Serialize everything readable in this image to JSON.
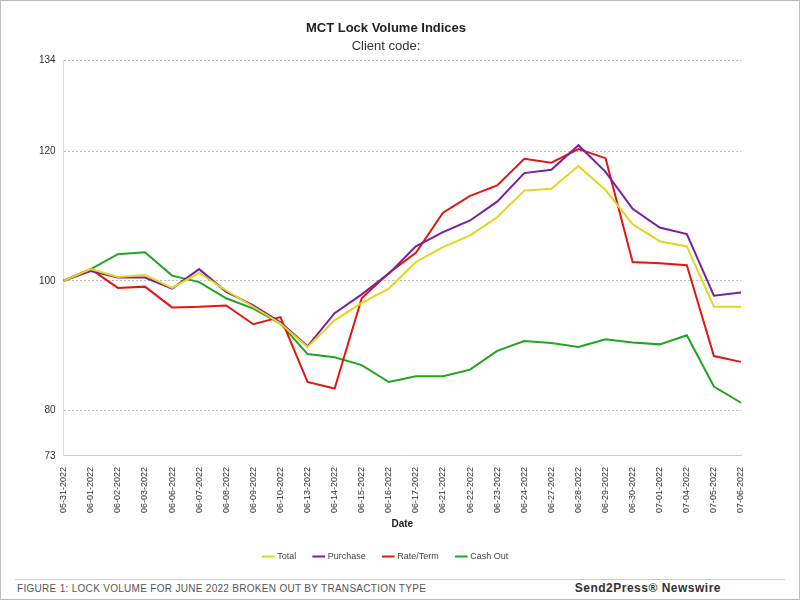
{
  "chart_data": {
    "type": "line",
    "title": "MCT Lock Volume Indices",
    "subtitle": "Client code:",
    "x_label": "Date",
    "categories": [
      "05-31-2022",
      "06-01-2022",
      "06-02-2022",
      "06-03-2022",
      "06-06-2022",
      "06-07-2022",
      "06-08-2022",
      "06-09-2022",
      "06-10-2022",
      "06-13-2022",
      "06-14-2022",
      "06-15-2022",
      "06-16-2022",
      "06-17-2022",
      "06-21-2022",
      "06-22-2022",
      "06-23-2022",
      "06-24-2022",
      "06-27-2022",
      "06-28-2022",
      "06-29-2022",
      "06-30-2022",
      "07-01-2022",
      "07-04-2022",
      "07-05-2022",
      "07-06-2022"
    ],
    "series": [
      {
        "name": "Total",
        "color": "#e3d51c",
        "values": [
          100,
          101.8,
          100.6,
          100.9,
          98.9,
          101.2,
          98.5,
          96.0,
          93.4,
          89.8,
          93.9,
          96.6,
          98.8,
          102.9,
          105.2,
          107.0,
          109.8,
          113.9,
          114.2,
          117.7,
          114.0,
          108.7,
          106.1,
          105.3,
          96.0,
          96.0
        ]
      },
      {
        "name": "Purchase",
        "color": "#7b1f9e",
        "values": [
          100,
          101.5,
          100.5,
          100.5,
          98.8,
          101.8,
          98.3,
          96.2,
          93.6,
          89.9,
          95.0,
          97.9,
          101.1,
          105.3,
          107.5,
          109.3,
          112.2,
          116.6,
          117.1,
          120.9,
          116.8,
          111.1,
          108.2,
          107.2,
          97.7,
          98.2
        ]
      },
      {
        "name": "Rate/Term",
        "color": "#e3170d",
        "values": [
          100,
          101.8,
          98.9,
          99.1,
          95.9,
          96.0,
          96.2,
          93.3,
          94.4,
          84.4,
          83.4,
          97.3,
          101.2,
          104.3,
          110.5,
          113.1,
          114.7,
          118.8,
          118.2,
          120.3,
          118.9,
          102.9,
          102.7,
          102.4,
          88.4,
          87.5
        ]
      },
      {
        "name": "Cash Out",
        "color": "#22a322",
        "values": [
          100,
          101.8,
          104.1,
          104.4,
          100.8,
          99.8,
          97.3,
          95.7,
          93.4,
          88.7,
          88.2,
          87.0,
          84.4,
          85.3,
          85.3,
          86.3,
          89.2,
          90.7,
          90.4,
          89.8,
          91.0,
          90.5,
          90.2,
          91.6,
          83.7,
          81.2
        ]
      }
    ],
    "ylim": [
      73,
      134
    ],
    "yticks": [
      73,
      80,
      100,
      120,
      134
    ],
    "grid": true,
    "legend": "bottom"
  },
  "footer": {
    "caption": "FIGURE 1: LOCK VOLUME FOR JUNE 2022 BROKEN OUT BY TRANSACTION TYPE",
    "credit": "Send2Press® Newswire"
  }
}
